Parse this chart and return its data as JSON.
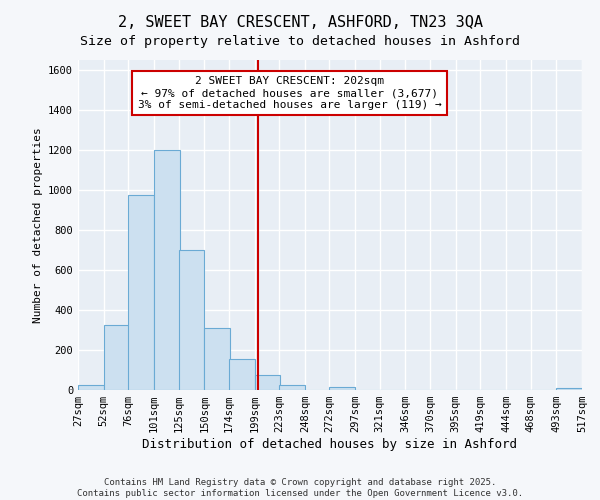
{
  "title": "2, SWEET BAY CRESCENT, ASHFORD, TN23 3QA",
  "subtitle": "Size of property relative to detached houses in Ashford",
  "xlabel": "Distribution of detached houses by size in Ashford",
  "ylabel": "Number of detached properties",
  "bar_left_edges": [
    27,
    52,
    76,
    101,
    125,
    150,
    174,
    199,
    223,
    248,
    272,
    297,
    321,
    346,
    370,
    395,
    419,
    444,
    468,
    493
  ],
  "bar_heights": [
    25,
    325,
    975,
    1200,
    700,
    310,
    155,
    75,
    25,
    0,
    15,
    0,
    0,
    0,
    0,
    0,
    0,
    0,
    0,
    10
  ],
  "bin_width": 25,
  "bar_color": "#cce0f0",
  "bar_edge_color": "#6aaad4",
  "vline_x": 202,
  "vline_color": "#cc0000",
  "annotation_title": "2 SWEET BAY CRESCENT: 202sqm",
  "annotation_line1": "← 97% of detached houses are smaller (3,677)",
  "annotation_line2": "3% of semi-detached houses are larger (119) →",
  "annotation_box_facecolor": "#ffffff",
  "annotation_box_edgecolor": "#cc0000",
  "tick_labels": [
    "27sqm",
    "52sqm",
    "76sqm",
    "101sqm",
    "125sqm",
    "150sqm",
    "174sqm",
    "199sqm",
    "223sqm",
    "248sqm",
    "272sqm",
    "297sqm",
    "321sqm",
    "346sqm",
    "370sqm",
    "395sqm",
    "419sqm",
    "444sqm",
    "468sqm",
    "493sqm",
    "517sqm"
  ],
  "ylim": [
    0,
    1650
  ],
  "yticks": [
    0,
    200,
    400,
    600,
    800,
    1000,
    1200,
    1400,
    1600
  ],
  "plot_bg_color": "#e8eef5",
  "fig_bg_color": "#f5f7fa",
  "grid_color": "#ffffff",
  "footer_line1": "Contains HM Land Registry data © Crown copyright and database right 2025.",
  "footer_line2": "Contains public sector information licensed under the Open Government Licence v3.0.",
  "title_fontsize": 11,
  "subtitle_fontsize": 9.5,
  "xlabel_fontsize": 9,
  "ylabel_fontsize": 8,
  "tick_fontsize": 7.5,
  "annotation_fontsize": 8,
  "footer_fontsize": 6.5
}
